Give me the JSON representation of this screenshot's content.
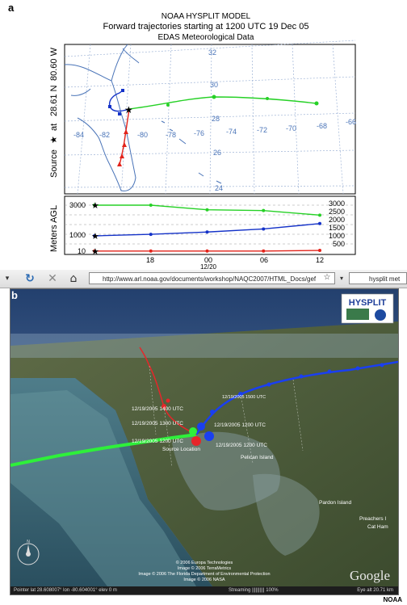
{
  "panel_a": {
    "label": "a",
    "title": {
      "line1": "NOAA HYSPLIT MODEL",
      "line2": "Forward trajectories starting at 1200 UTC 19 Dec 05",
      "line3": "EDAS Meteorological Data"
    },
    "source_lon": "80.60 W",
    "source_lat": "28.61 N",
    "source_text": "Source",
    "at_text": "at",
    "star": "★",
    "map_lon_labels": [
      "-84",
      "-82",
      "-80",
      "-78",
      "-76",
      "-74",
      "-72",
      "-70",
      "-68",
      "-66"
    ],
    "map_lat_labels": [
      "32",
      "30",
      "28",
      "26",
      "24"
    ],
    "ylabel": "Meters AGL",
    "left_ticks": [
      "3000",
      "1000",
      "10"
    ],
    "right_ticks": [
      "3000",
      "2500",
      "2000",
      "1500",
      "1000",
      "500"
    ],
    "time_ticks": [
      "18",
      "00",
      "06",
      "12"
    ],
    "date_label": "12/20",
    "colors": {
      "red": "#e2231a",
      "blue": "#1432c8",
      "green": "#26d126",
      "map_blue": "#4a74b8"
    },
    "chart_data": {
      "type": "line",
      "ylabel": "Meters AGL",
      "x": [
        "12 UTC 12/19",
        "18",
        "00 12/20",
        "06",
        "12"
      ],
      "series": [
        {
          "color": "green",
          "values": [
            3000,
            3000,
            2700,
            2650,
            2350
          ]
        },
        {
          "color": "blue",
          "values": [
            1000,
            1100,
            1250,
            1450,
            1800
          ]
        },
        {
          "color": "red",
          "values": [
            10,
            10,
            10,
            10,
            50
          ]
        }
      ]
    }
  },
  "browser": {
    "url": "http://www.arl.noaa.gov/documents/workshop/NAQC2007/HTML_Docs/gef",
    "search_text": "hysplit met",
    "back_icon": "back-arrow-icon",
    "reload_icon": "reload-icon",
    "stop_icon": "stop-icon",
    "home_icon": "home-icon"
  },
  "panel_b": {
    "label": "b",
    "logo_text": "HYSPLIT",
    "annotations": {
      "t1500": "12/19/2005 1500 UTC",
      "t1400": "12/19/2005 1400 UTC",
      "t1300": "12/19/2005 1300 UTC",
      "t1200_blue": "12/19/2005 1200 UTC",
      "t1200_red": "12/19/2005 1200 UTC",
      "t1200_green": "12/19/2005 1200 UTC",
      "source": "Source Location"
    },
    "places": {
      "pelican": "Pelican Island",
      "pardon": "Pardon Island",
      "preachers": "Preachers I",
      "cat": "Cat Ham"
    },
    "copyright": [
      "© 2006 Europa Technologies",
      "Image © 2006 TerraMetrics",
      "Image © 2006 The Florida Department of Environmental Protection",
      "Image © 2006 NASA"
    ],
    "google_logo": "Google",
    "status": {
      "pointer": "Pointer  lat  28.608007°  lon  -80.604001°  elev   0 m",
      "streaming": "Streaming |||||||||| 100%",
      "eye": "Eye  alt   20.71 km"
    }
  },
  "credit": "NOAA"
}
